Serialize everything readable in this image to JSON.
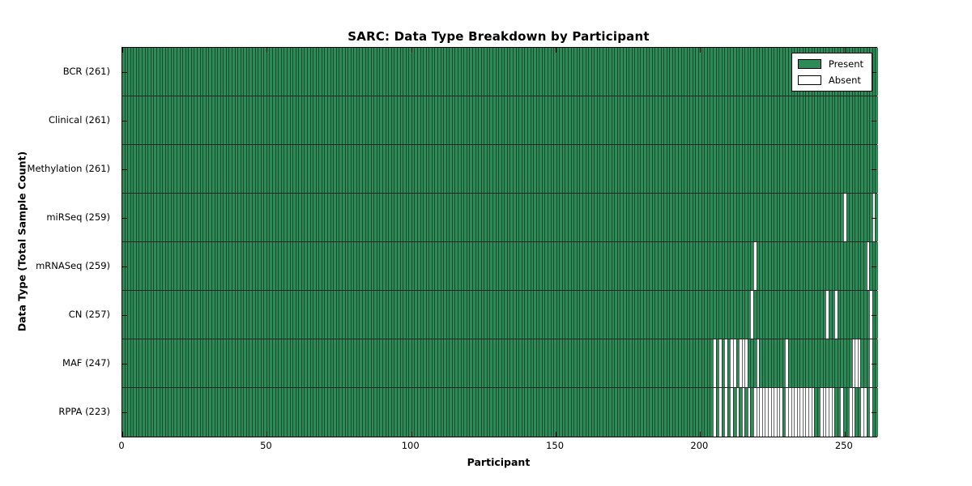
{
  "title": "SARC: Data Type Breakdown by Participant",
  "xlabel": "Participant",
  "ylabel": "Data Type (Total Sample Count)",
  "legend": {
    "present_label": "Present",
    "absent_label": "Absent"
  },
  "colors": {
    "present": "#2e8b57",
    "absent": "#ffffff",
    "bar_edge": "rgba(0,0,0,0.45)",
    "frame": "#000000"
  },
  "chart_data": {
    "type": "heatmap",
    "title": "SARC: Data Type Breakdown by Participant",
    "xlabel": "Participant",
    "ylabel": "Data Type (Total Sample Count)",
    "legend": [
      "Present",
      "Absent"
    ],
    "legend_position": "upper right",
    "grid": false,
    "n_participants": 261,
    "x_range": [
      0,
      261
    ],
    "x_ticks": [
      0,
      50,
      100,
      150,
      200,
      250
    ],
    "rows": [
      {
        "label": "BCR (261)",
        "data_type": "BCR",
        "total": 261,
        "absent": []
      },
      {
        "label": "Clinical (261)",
        "data_type": "Clinical",
        "total": 261,
        "absent": []
      },
      {
        "label": "Methylation (261)",
        "data_type": "Methylation",
        "total": 261,
        "absent": []
      },
      {
        "label": "miRSeq (259)",
        "data_type": "miRSeq",
        "total": 259,
        "absent": [
          249,
          259
        ]
      },
      {
        "label": "mRNASeq (259)",
        "data_type": "mRNASeq",
        "total": 259,
        "absent": [
          218,
          257
        ]
      },
      {
        "label": "CN (257)",
        "data_type": "CN",
        "total": 257,
        "absent": [
          217,
          243,
          246,
          258
        ]
      },
      {
        "label": "MAF (247)",
        "data_type": "MAF",
        "total": 247,
        "absent": [
          204,
          206,
          208,
          210,
          211,
          213,
          214,
          215,
          219,
          229,
          252,
          253,
          254,
          258
        ]
      },
      {
        "label": "RPPA (223)",
        "data_type": "RPPA",
        "total": 223,
        "absent": [
          204,
          206,
          208,
          210,
          212,
          214,
          216,
          218,
          219,
          220,
          221,
          222,
          223,
          224,
          225,
          226,
          227,
          229,
          230,
          231,
          232,
          233,
          234,
          235,
          236,
          237,
          238,
          241,
          242,
          243,
          244,
          245,
          248,
          251,
          252,
          255,
          256,
          258
        ]
      }
    ]
  }
}
